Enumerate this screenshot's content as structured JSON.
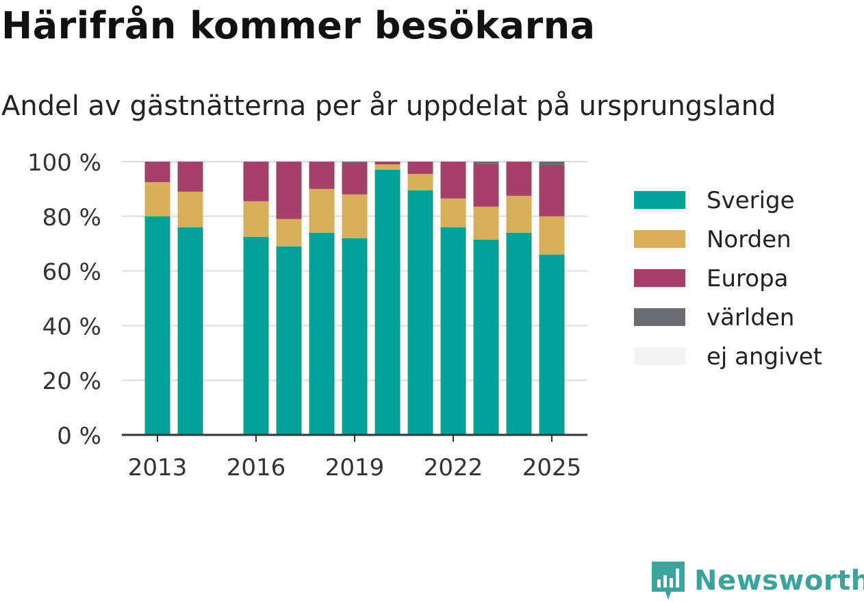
{
  "title": "Härifrån kommer besökarna",
  "subtitle": "Andel av gästnätterna per år uppdelat på ursprungsland",
  "brand": "Newsworthy",
  "colors": {
    "Sverige": "#00a398",
    "Norden": "#d9ae5a",
    "Europa": "#a63f69",
    "världen": "#6b6b72",
    "ej angivet": "#f2f2f2"
  },
  "chart_data": {
    "type": "bar",
    "stacked": true,
    "x": [
      2013,
      2014,
      2016,
      2017,
      2018,
      2019,
      2020,
      2021,
      2022,
      2023,
      2024,
      2025
    ],
    "x_ticks": [
      "2013",
      "2016",
      "2019",
      "2022",
      "2025"
    ],
    "y_ticks": [
      "0 %",
      "20 %",
      "40 %",
      "60 %",
      "80 %",
      "100 %"
    ],
    "ylim": [
      0,
      100
    ],
    "grid": true,
    "legend": "right",
    "series": [
      {
        "name": "Sverige",
        "values": [
          80,
          76,
          72.5,
          69,
          74,
          72,
          97,
          89.5,
          76,
          71.5,
          74,
          66
        ]
      },
      {
        "name": "Norden",
        "values": [
          12.5,
          13,
          13,
          10,
          16,
          16,
          2,
          6,
          10.5,
          12,
          13.5,
          14
        ]
      },
      {
        "name": "Europa",
        "values": [
          7.5,
          11,
          14.5,
          21,
          10,
          11.5,
          1,
          4.5,
          13.5,
          15.5,
          12.5,
          18.5
        ]
      },
      {
        "name": "världen",
        "values": [
          0,
          0,
          0,
          0,
          0,
          0.5,
          0,
          0,
          0,
          1,
          0,
          1.5
        ]
      },
      {
        "name": "ej angivet",
        "values": [
          0,
          0,
          0,
          0,
          0,
          0,
          0,
          0,
          0,
          0,
          0,
          0
        ]
      }
    ]
  }
}
